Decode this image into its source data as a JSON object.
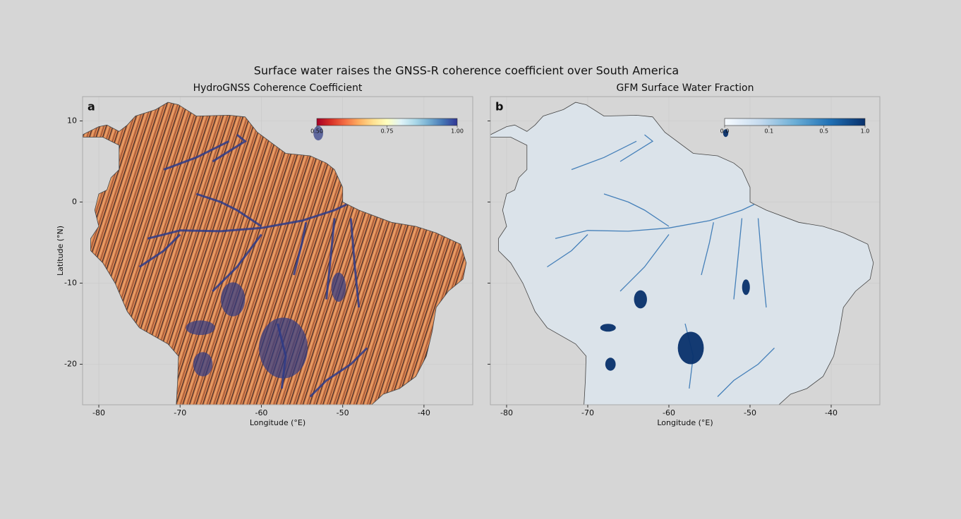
{
  "title": "Surface water raises the GNSS-R coherence coefficient over South America",
  "chart_data": [
    {
      "type": "map",
      "panel": "a",
      "title": "HydroGNSS Coherence Coefficient",
      "x_label": "Longitude (°E)",
      "y_label": "Latitude (°N)",
      "xlim": [
        -82,
        -34
      ],
      "ylim": [
        -25,
        13
      ],
      "xticks": [
        -80,
        -70,
        -60,
        -50,
        -40
      ],
      "yticks": [
        -20,
        -10,
        0,
        10
      ],
      "ytick_labels": true,
      "grid": true,
      "colormap": "RdYlBu",
      "colorbar_scale": "linear",
      "clim": [
        0.5,
        1.0
      ],
      "colorbar_ticks": [
        {
          "value": 0.5,
          "label": "0.50"
        },
        0.75,
        {
          "value": 1.0,
          "label": "1.00"
        }
      ]
    },
    {
      "type": "map",
      "panel": "b",
      "title": "GFM Surface Water Fraction",
      "x_label": "Longitude (°E)",
      "xlim": [
        -82,
        -34
      ],
      "ylim": [
        -25,
        13
      ],
      "xticks": [
        -80,
        -70,
        -60,
        -50,
        -40
      ],
      "yticks": [
        -20,
        -10,
        0,
        10
      ],
      "ytick_labels": false,
      "grid": true,
      "colormap": "Blues",
      "colorbar_scale": "sqrt",
      "clim": [
        0,
        1.0
      ],
      "colorbar_ticks": [
        {
          "value": 0,
          "label": "0.0"
        },
        0.1,
        0.5,
        {
          "value": 1.0,
          "label": "1.0"
        }
      ]
    }
  ]
}
